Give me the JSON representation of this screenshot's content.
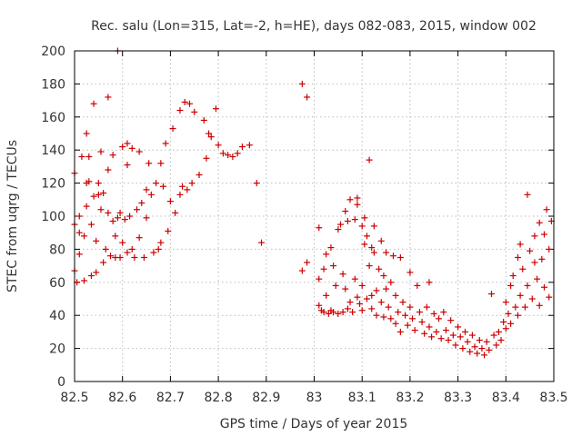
{
  "chart_data": {
    "type": "scatter",
    "title": "Rec. salu (Lon=315, Lat=-2, h=HE), days 082-083, 2015, window 002",
    "xlabel": "GPS time / Days of year 2015",
    "ylabel": "STEC from uqrg / TECUs",
    "xlim": [
      82.5,
      83.5
    ],
    "ylim": [
      0,
      200
    ],
    "x_ticks": [
      "82.5",
      "82.6",
      "82.7",
      "82.8",
      "82.9",
      "83",
      "83.1",
      "83.2",
      "83.3",
      "83.4",
      "83.5"
    ],
    "y_ticks": [
      "0",
      "20",
      "40",
      "60",
      "80",
      "100",
      "120",
      "140",
      "160",
      "180",
      "200"
    ],
    "grid": true,
    "marker": "+",
    "marker_color": "#cc0000",
    "points": [
      [
        82.5,
        126
      ],
      [
        82.5,
        95
      ],
      [
        82.5,
        67
      ],
      [
        82.505,
        60
      ],
      [
        82.51,
        100
      ],
      [
        82.51,
        90
      ],
      [
        82.51,
        77
      ],
      [
        82.515,
        136
      ],
      [
        82.52,
        88
      ],
      [
        82.52,
        61
      ],
      [
        82.525,
        150
      ],
      [
        82.525,
        106
      ],
      [
        82.525,
        120
      ],
      [
        82.53,
        136
      ],
      [
        82.53,
        121
      ],
      [
        82.535,
        95
      ],
      [
        82.535,
        64
      ],
      [
        82.54,
        168
      ],
      [
        82.54,
        112
      ],
      [
        82.545,
        85
      ],
      [
        82.545,
        66
      ],
      [
        82.55,
        120
      ],
      [
        82.55,
        113
      ],
      [
        82.555,
        139
      ],
      [
        82.555,
        104
      ],
      [
        82.56,
        114
      ],
      [
        82.56,
        72
      ],
      [
        82.565,
        80
      ],
      [
        82.57,
        172
      ],
      [
        82.57,
        128
      ],
      [
        82.57,
        102
      ],
      [
        82.575,
        76
      ],
      [
        82.58,
        137
      ],
      [
        82.58,
        97
      ],
      [
        82.585,
        88
      ],
      [
        82.585,
        75
      ],
      [
        82.59,
        200
      ],
      [
        82.59,
        99
      ],
      [
        82.595,
        102
      ],
      [
        82.595,
        75
      ],
      [
        82.6,
        142
      ],
      [
        82.6,
        84
      ],
      [
        82.605,
        98
      ],
      [
        82.61,
        144
      ],
      [
        82.61,
        131
      ],
      [
        82.61,
        78
      ],
      [
        82.615,
        100
      ],
      [
        82.62,
        141
      ],
      [
        82.62,
        80
      ],
      [
        82.625,
        75
      ],
      [
        82.63,
        104
      ],
      [
        82.635,
        139
      ],
      [
        82.635,
        87
      ],
      [
        82.64,
        108
      ],
      [
        82.645,
        75
      ],
      [
        82.65,
        116
      ],
      [
        82.65,
        99
      ],
      [
        82.655,
        132
      ],
      [
        82.66,
        113
      ],
      [
        82.665,
        78
      ],
      [
        82.67,
        120
      ],
      [
        82.675,
        80
      ],
      [
        82.68,
        132
      ],
      [
        82.68,
        84
      ],
      [
        82.685,
        118
      ],
      [
        82.69,
        144
      ],
      [
        82.695,
        91
      ],
      [
        82.7,
        109
      ],
      [
        82.705,
        153
      ],
      [
        82.71,
        102
      ],
      [
        82.72,
        164
      ],
      [
        82.72,
        113
      ],
      [
        82.725,
        118
      ],
      [
        82.73,
        169
      ],
      [
        82.735,
        116
      ],
      [
        82.74,
        168
      ],
      [
        82.745,
        120
      ],
      [
        82.75,
        163
      ],
      [
        82.76,
        125
      ],
      [
        82.77,
        158
      ],
      [
        82.775,
        135
      ],
      [
        82.78,
        150
      ],
      [
        82.785,
        148
      ],
      [
        82.795,
        165
      ],
      [
        82.8,
        143
      ],
      [
        82.81,
        138
      ],
      [
        82.82,
        137
      ],
      [
        82.83,
        136
      ],
      [
        82.84,
        138
      ],
      [
        82.85,
        142
      ],
      [
        82.865,
        143
      ],
      [
        82.88,
        120
      ],
      [
        82.89,
        84
      ],
      [
        82.975,
        180
      ],
      [
        82.975,
        67
      ],
      [
        82.985,
        172
      ],
      [
        82.985,
        72
      ],
      [
        83.01,
        93
      ],
      [
        83.01,
        62
      ],
      [
        83.01,
        46
      ],
      [
        83.015,
        43
      ],
      [
        83.02,
        68
      ],
      [
        83.02,
        42
      ],
      [
        83.025,
        77
      ],
      [
        83.025,
        52
      ],
      [
        83.03,
        41
      ],
      [
        83.035,
        81
      ],
      [
        83.035,
        43
      ],
      [
        83.04,
        70
      ],
      [
        83.04,
        42
      ],
      [
        83.045,
        58
      ],
      [
        83.05,
        92
      ],
      [
        83.05,
        41
      ],
      [
        83.055,
        95
      ],
      [
        83.06,
        65
      ],
      [
        83.06,
        42
      ],
      [
        83.065,
        103
      ],
      [
        83.065,
        56
      ],
      [
        83.07,
        97
      ],
      [
        83.07,
        44
      ],
      [
        83.075,
        110
      ],
      [
        83.075,
        48
      ],
      [
        83.08,
        42
      ],
      [
        83.085,
        98
      ],
      [
        83.085,
        62
      ],
      [
        83.09,
        111
      ],
      [
        83.09,
        107
      ],
      [
        83.09,
        51
      ],
      [
        83.095,
        47
      ],
      [
        83.1,
        94
      ],
      [
        83.1,
        58
      ],
      [
        83.1,
        43
      ],
      [
        83.105,
        99
      ],
      [
        83.105,
        83
      ],
      [
        83.11,
        88
      ],
      [
        83.11,
        50
      ],
      [
        83.115,
        134
      ],
      [
        83.115,
        70
      ],
      [
        83.12,
        81
      ],
      [
        83.12,
        52
      ],
      [
        83.12,
        44
      ],
      [
        83.125,
        94
      ],
      [
        83.125,
        78
      ],
      [
        83.13,
        55
      ],
      [
        83.13,
        40
      ],
      [
        83.135,
        68
      ],
      [
        83.14,
        85
      ],
      [
        83.14,
        48
      ],
      [
        83.145,
        64
      ],
      [
        83.145,
        39
      ],
      [
        83.15,
        78
      ],
      [
        83.15,
        56
      ],
      [
        83.155,
        45
      ],
      [
        83.16,
        60
      ],
      [
        83.16,
        38
      ],
      [
        83.165,
        76
      ],
      [
        83.17,
        52
      ],
      [
        83.17,
        35
      ],
      [
        83.175,
        42
      ],
      [
        83.18,
        75
      ],
      [
        83.18,
        30
      ],
      [
        83.185,
        48
      ],
      [
        83.19,
        40
      ],
      [
        83.195,
        34
      ],
      [
        83.2,
        66
      ],
      [
        83.2,
        45
      ],
      [
        83.205,
        38
      ],
      [
        83.21,
        31
      ],
      [
        83.215,
        58
      ],
      [
        83.22,
        42
      ],
      [
        83.225,
        36
      ],
      [
        83.23,
        29
      ],
      [
        83.235,
        45
      ],
      [
        83.24,
        60
      ],
      [
        83.24,
        33
      ],
      [
        83.245,
        27
      ],
      [
        83.25,
        41
      ],
      [
        83.255,
        30
      ],
      [
        83.26,
        38
      ],
      [
        83.265,
        26
      ],
      [
        83.27,
        42
      ],
      [
        83.275,
        31
      ],
      [
        83.28,
        25
      ],
      [
        83.285,
        37
      ],
      [
        83.29,
        28
      ],
      [
        83.295,
        22
      ],
      [
        83.3,
        33
      ],
      [
        83.305,
        27
      ],
      [
        83.31,
        20
      ],
      [
        83.315,
        30
      ],
      [
        83.32,
        24
      ],
      [
        83.325,
        18
      ],
      [
        83.33,
        28
      ],
      [
        83.335,
        21
      ],
      [
        83.34,
        17
      ],
      [
        83.345,
        25
      ],
      [
        83.35,
        20
      ],
      [
        83.355,
        16
      ],
      [
        83.36,
        24
      ],
      [
        83.365,
        19
      ],
      [
        83.37,
        53
      ],
      [
        83.375,
        28
      ],
      [
        83.38,
        22
      ],
      [
        83.385,
        30
      ],
      [
        83.39,
        25
      ],
      [
        83.395,
        36
      ],
      [
        83.4,
        32
      ],
      [
        83.4,
        48
      ],
      [
        83.405,
        41
      ],
      [
        83.41,
        58
      ],
      [
        83.41,
        35
      ],
      [
        83.415,
        64
      ],
      [
        83.42,
        45
      ],
      [
        83.425,
        75
      ],
      [
        83.425,
        40
      ],
      [
        83.43,
        83
      ],
      [
        83.43,
        52
      ],
      [
        83.435,
        68
      ],
      [
        83.44,
        45
      ],
      [
        83.445,
        113
      ],
      [
        83.445,
        58
      ],
      [
        83.45,
        79
      ],
      [
        83.455,
        50
      ],
      [
        83.46,
        88
      ],
      [
        83.46,
        72
      ],
      [
        83.465,
        62
      ],
      [
        83.47,
        96
      ],
      [
        83.47,
        46
      ],
      [
        83.475,
        74
      ],
      [
        83.48,
        89
      ],
      [
        83.48,
        57
      ],
      [
        83.485,
        104
      ],
      [
        83.49,
        80
      ],
      [
        83.49,
        51
      ],
      [
        83.495,
        97
      ]
    ]
  }
}
